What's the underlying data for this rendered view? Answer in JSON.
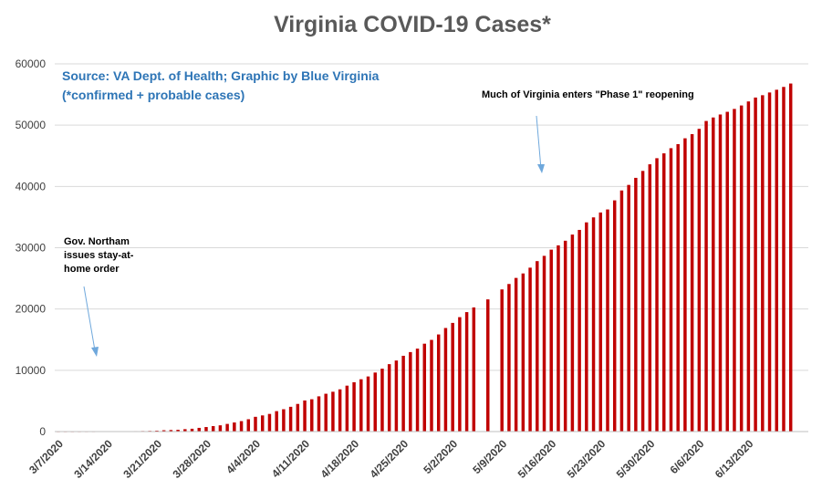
{
  "chart_data": {
    "type": "bar",
    "title": "Virginia COVID-19 Cases*",
    "source_line1": "Source: VA Dept. of Health; Graphic by Blue Virginia",
    "source_line2": "(*confirmed + probable cases)",
    "annotations": {
      "stay_home": [
        "Gov. Northam",
        "issues stay-at-",
        "home order"
      ],
      "phase1": "Much of Virginia enters \"Phase 1\" reopening"
    },
    "ylim": [
      0,
      60000
    ],
    "yticks": [
      "0",
      "10000",
      "20000",
      "30000",
      "40000",
      "50000",
      "60000"
    ],
    "grid": true,
    "bar_color": "#c00000",
    "annotation_arrow_color": "#6fa8dc",
    "xtick_labels": [
      "3/7/2020",
      "3/14/2020",
      "3/21/2020",
      "3/28/2020",
      "4/4/2020",
      "4/11/2020",
      "4/18/2020",
      "4/25/2020",
      "5/2/2020",
      "5/9/2020",
      "5/16/2020",
      "5/23/2020",
      "5/30/2020",
      "6/6/2020",
      "6/13/2020"
    ],
    "start_date": "3/7/2020",
    "categories": [
      "3/7/2020",
      "3/8/2020",
      "3/9/2020",
      "3/10/2020",
      "3/11/2020",
      "3/12/2020",
      "3/13/2020",
      "3/14/2020",
      "3/15/2020",
      "3/16/2020",
      "3/17/2020",
      "3/18/2020",
      "3/19/2020",
      "3/20/2020",
      "3/21/2020",
      "3/22/2020",
      "3/23/2020",
      "3/24/2020",
      "3/25/2020",
      "3/26/2020",
      "3/27/2020",
      "3/28/2020",
      "3/29/2020",
      "3/30/2020",
      "3/31/2020",
      "4/1/2020",
      "4/2/2020",
      "4/3/2020",
      "4/4/2020",
      "4/5/2020",
      "4/6/2020",
      "4/7/2020",
      "4/8/2020",
      "4/9/2020",
      "4/10/2020",
      "4/11/2020",
      "4/12/2020",
      "4/13/2020",
      "4/14/2020",
      "4/15/2020",
      "4/16/2020",
      "4/17/2020",
      "4/18/2020",
      "4/19/2020",
      "4/20/2020",
      "4/21/2020",
      "4/22/2020",
      "4/23/2020",
      "4/24/2020",
      "4/25/2020",
      "4/26/2020",
      "4/27/2020",
      "4/28/2020",
      "4/29/2020",
      "4/30/2020",
      "5/1/2020",
      "5/2/2020",
      "5/3/2020",
      "5/4/2020",
      "5/5/2020",
      "5/6/2020",
      "5/7/2020",
      "5/8/2020",
      "5/9/2020",
      "5/10/2020",
      "5/11/2020",
      "5/12/2020",
      "5/13/2020",
      "5/14/2020",
      "5/15/2020",
      "5/16/2020",
      "5/17/2020",
      "5/18/2020",
      "5/19/2020",
      "5/20/2020",
      "5/21/2020",
      "5/22/2020",
      "5/23/2020",
      "5/24/2020",
      "5/25/2020",
      "5/26/2020",
      "5/27/2020",
      "5/28/2020",
      "5/29/2020",
      "5/30/2020",
      "5/31/2020",
      "6/1/2020",
      "6/2/2020",
      "6/3/2020",
      "6/4/2020",
      "6/5/2020",
      "6/6/2020",
      "6/7/2020",
      "6/8/2020",
      "6/9/2020",
      "6/10/2020",
      "6/11/2020",
      "6/12/2020",
      "6/13/2020",
      "6/14/2020",
      "6/15/2020",
      "6/16/2020",
      "6/17/2020",
      "6/18/2020",
      "6/19/2020",
      "6/20/2020",
      "6/21/2020"
    ],
    "values": [
      2,
      2,
      3,
      5,
      8,
      9,
      17,
      30,
      41,
      45,
      67,
      77,
      94,
      114,
      152,
      219,
      254,
      290,
      391,
      460,
      604,
      739,
      890,
      1020,
      1250,
      1484,
      1706,
      2012,
      2407,
      2637,
      2878,
      3333,
      3645,
      4042,
      4509,
      5077,
      5274,
      5747,
      6171,
      6500,
      6889,
      7491,
      8053,
      8537,
      8990,
      9630,
      10266,
      10998,
      11594,
      12366,
      12970,
      13535,
      14339,
      14961,
      15846,
      16901,
      17731,
      18671,
      19492,
      20256,
      0,
      21570,
      0,
      23196,
      24081,
      25070,
      25800,
      26746,
      27813,
      28672,
      29683,
      30388,
      31140,
      32145,
      32908,
      34137,
      34950,
      35749,
      36244,
      37727,
      39342,
      40249,
      41401,
      42533,
      43611,
      44607,
      45398,
      46239,
      46905,
      47856,
      48532,
      49397,
      50681,
      51251,
      51738,
      52177,
      52647,
      53211,
      53869,
      54506,
      54886,
      55331,
      55775,
      56238,
      56793,
      0,
      0
    ]
  }
}
